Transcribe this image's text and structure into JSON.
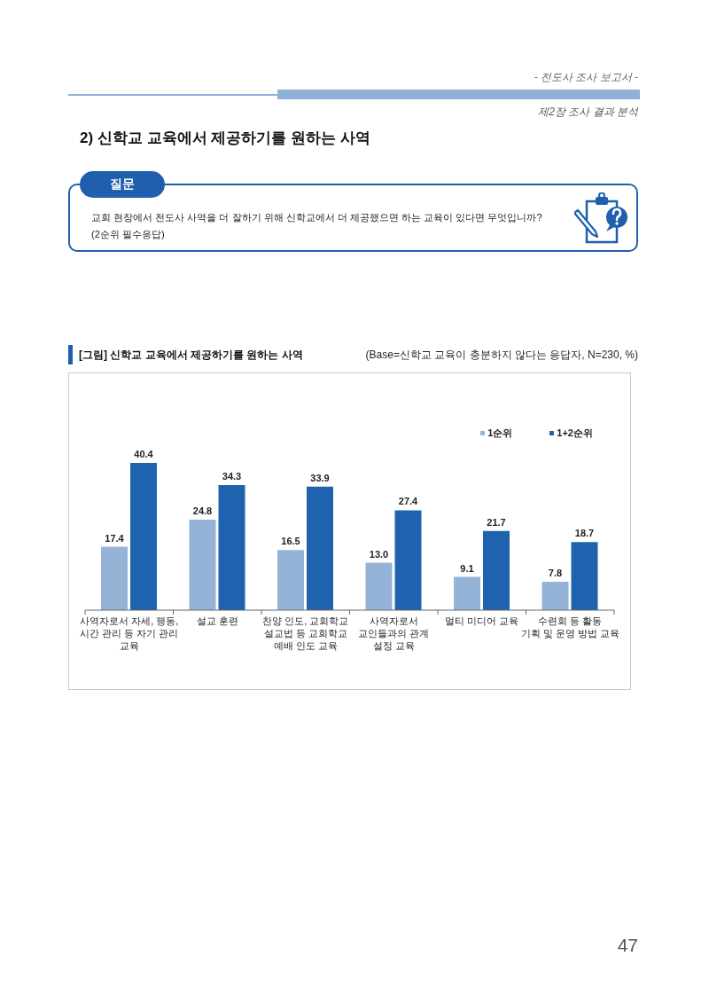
{
  "chart_data": {
    "type": "bar",
    "title": "[그림] 신학교 교육에서 제공하기를 원하는 사역",
    "subtitle": "(Base=신학교 교육이 충분하지 않다는 응답자, N=230, %)",
    "categories": [
      "사역자로서 자세, 행동,\n시간 관리 등 자기 관리\n교육",
      "설교 훈련",
      "찬양 인도, 교회학교\n설교법 등 교회학교\n예배 인도 교육",
      "사역자로서\n교인들과의 관계\n설정 교육",
      "멀티 미디어 교육",
      "수련회 등 활동\n기획 및 운영 방법 교육"
    ],
    "series": [
      {
        "name": "1순위",
        "color": "#95b3d7",
        "values": [
          17.4,
          24.8,
          16.5,
          13.0,
          9.1,
          7.8
        ],
        "value_labels": [
          "17.4",
          "24.8",
          "16.5",
          "13.0",
          "9.1",
          "7.8"
        ]
      },
      {
        "name": "1+2순위",
        "color": "#1f62ae",
        "values": [
          40.4,
          34.3,
          33.9,
          27.4,
          21.7,
          18.7
        ],
        "value_labels": [
          "40.4",
          "34.3",
          "33.9",
          "27.4",
          "21.7",
          "18.7"
        ]
      }
    ],
    "legend": "top right",
    "annotations": [
      "- 전도사 조사 보고서 -",
      "제2장 조사 결과 분석",
      "2) 신학교 교육에서 제공하기를 원하는 사역",
      "질문",
      "교회 현장에서 전도사 사역을 더 잘하기 위해 신학교에서 더 제공했으면 하는 교육이 있다면 무엇입니까?",
      "(2순위 필수응답)",
      "47"
    ]
  }
}
